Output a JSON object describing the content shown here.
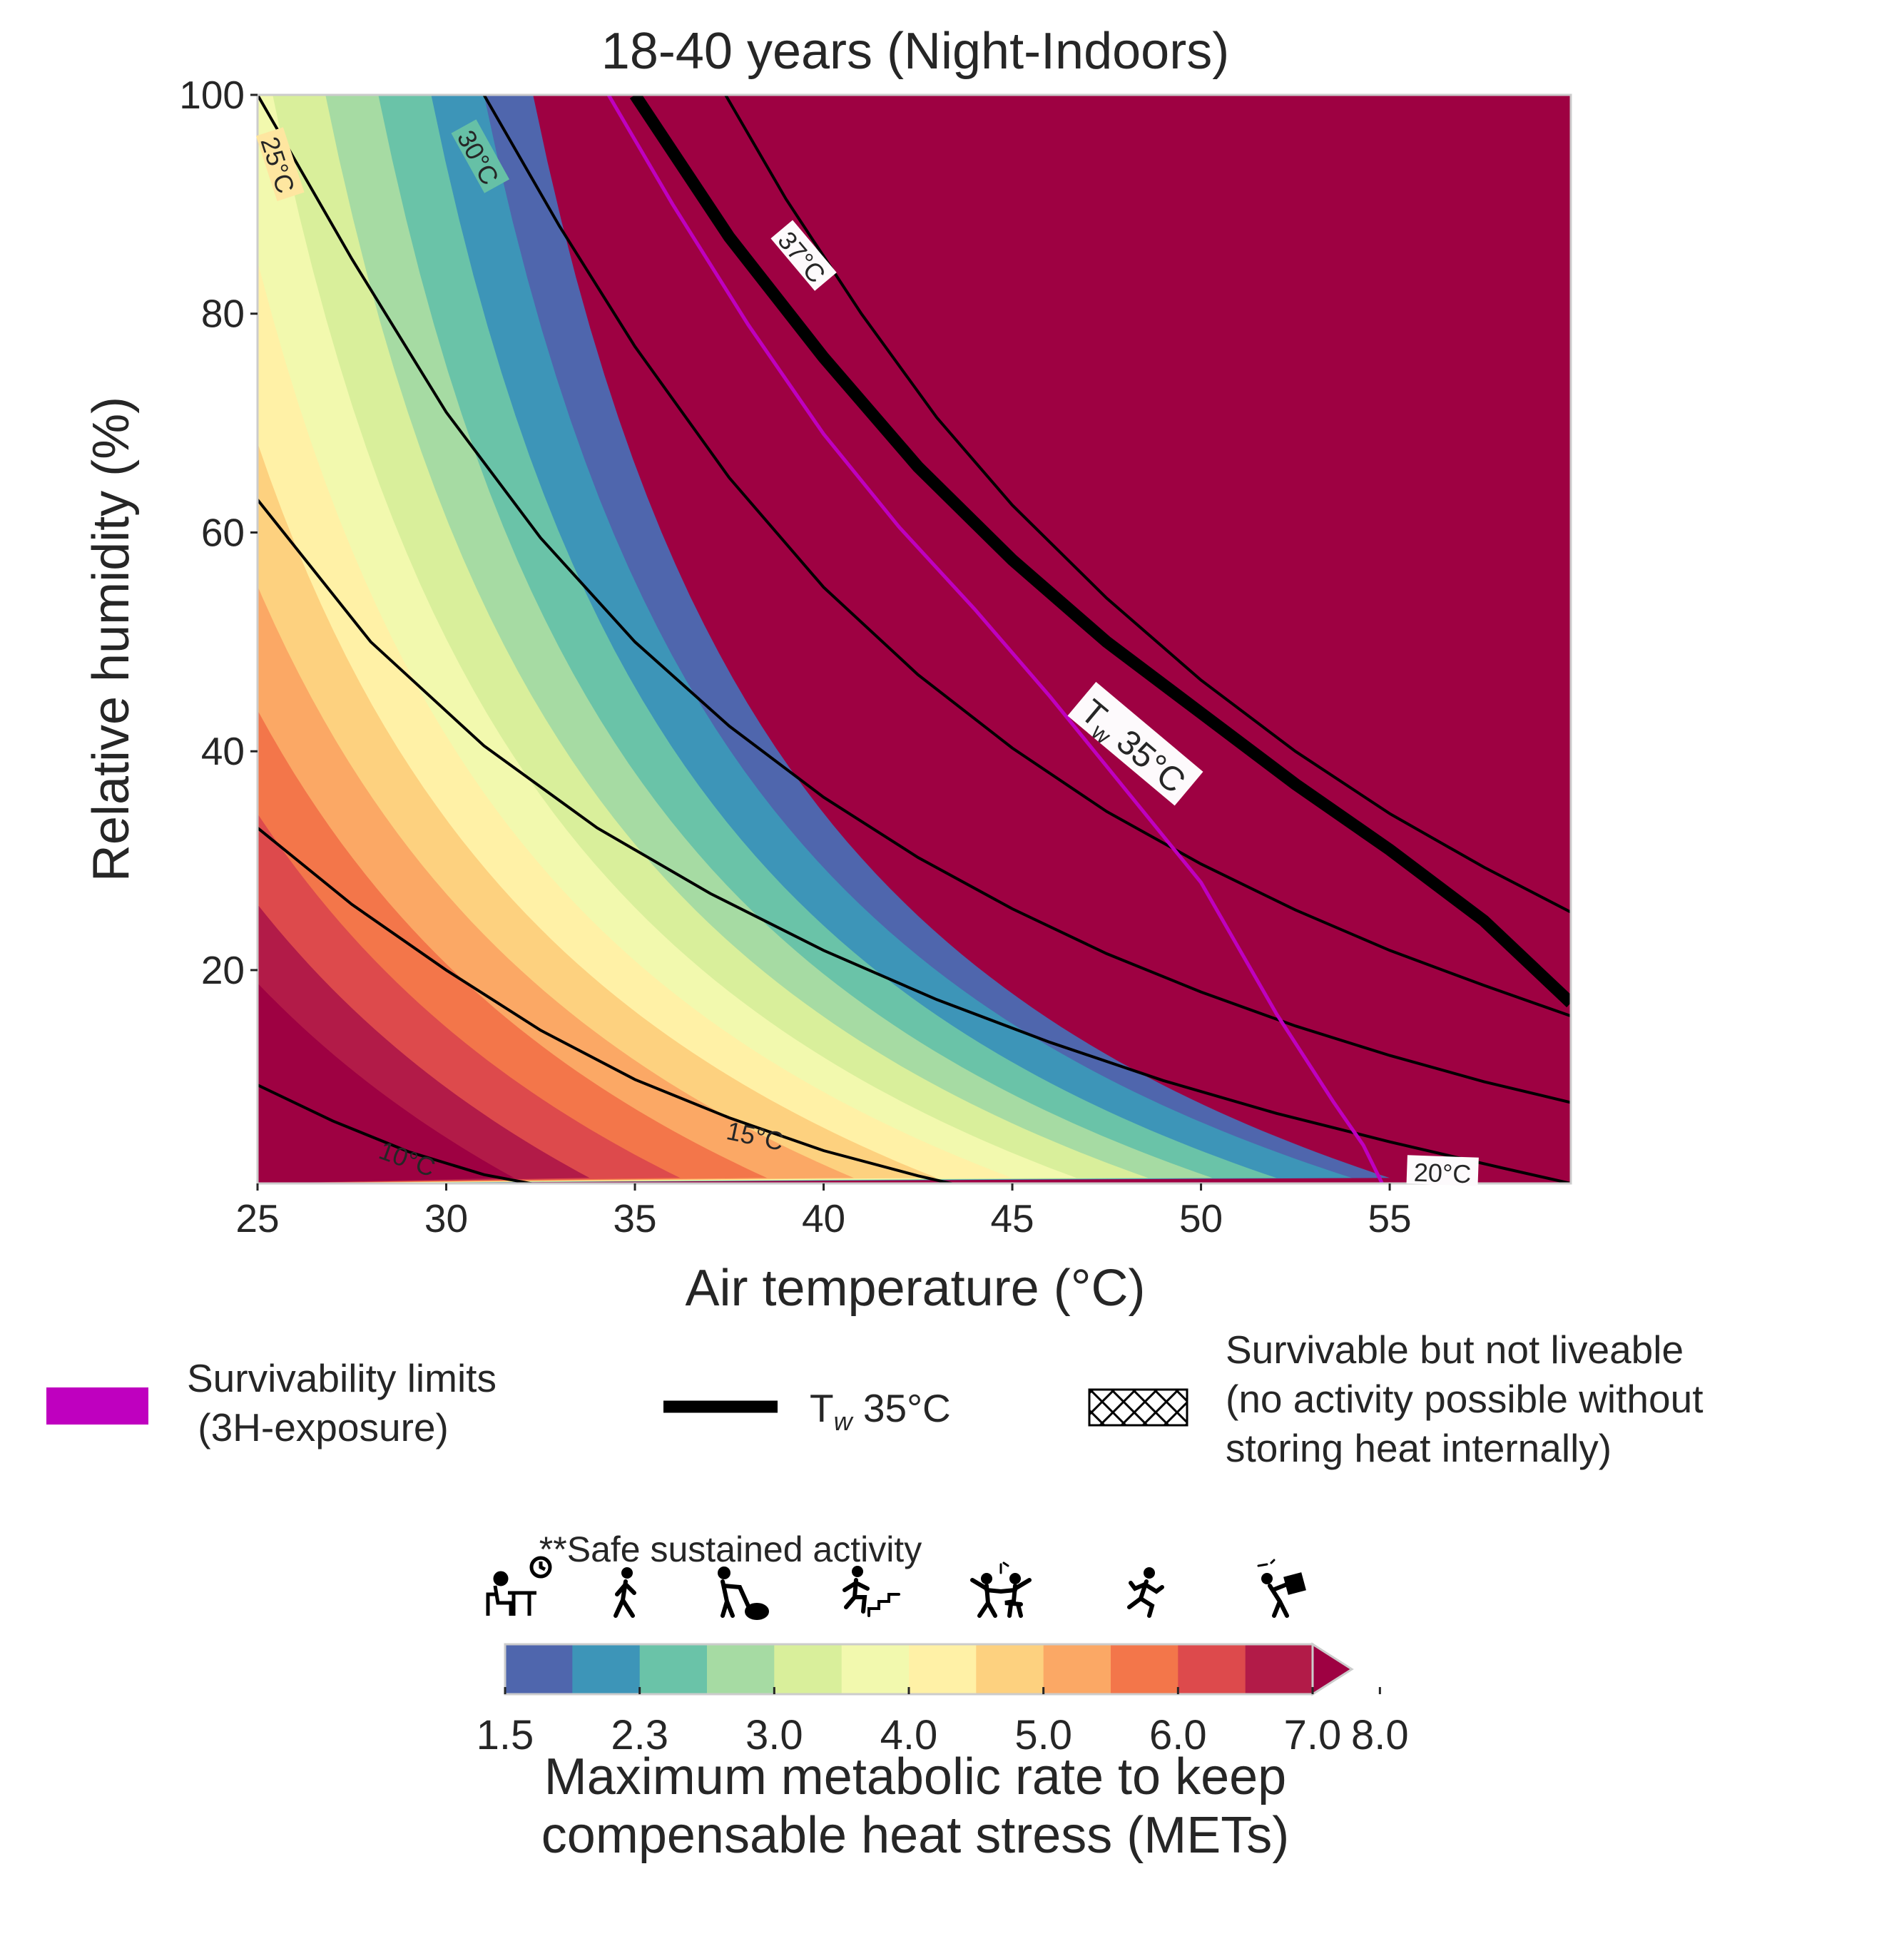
{
  "chart_data": {
    "type": "heatmap",
    "title": "18-40 years (Night-Indoors)",
    "xlabel": "Air temperature (°C)",
    "ylabel": "Relative humidity (%)",
    "xlim": [
      25,
      59.8
    ],
    "ylim": [
      0.5,
      100
    ],
    "xticks": [
      "25",
      "30",
      "35",
      "40",
      "45",
      "50",
      "55"
    ],
    "yticks": [
      "20",
      "40",
      "60",
      "80",
      "100"
    ],
    "grid": false,
    "background_color": "#fdfafc",
    "levels": [
      1.5,
      1.9,
      2.3,
      2.65,
      3.0,
      3.5,
      4.0,
      4.5,
      5.0,
      5.5,
      6.0,
      6.5,
      7.0,
      8.0
    ],
    "level_colors": [
      "#4f66ad",
      "#3d95b8",
      "#6ac3a8",
      "#a6dba3",
      "#d9ef9b",
      "#f2f9ae",
      "#fff1a6",
      "#fdd17f",
      "#fba865",
      "#f3764a",
      "#dd4a4c",
      "#b21b48",
      "#9e0142"
    ],
    "color_bands": [
      {
        "level": 1.5,
        "rh100_temp": 32.3,
        "rh1_temp": 55.0
      },
      {
        "level": 1.9,
        "rh100_temp": 31.0,
        "rh1_temp": 54.0
      },
      {
        "level": 2.3,
        "rh100_temp": 29.6,
        "rh1_temp": 52.0
      },
      {
        "level": 2.65,
        "rh100_temp": 28.2,
        "rh1_temp": 50.3
      },
      {
        "level": 3.0,
        "rh100_temp": 26.8,
        "rh1_temp": 48.6
      },
      {
        "level": 3.5,
        "rh100_temp": 25.4,
        "rh1_temp": 46.7
      },
      {
        "level": 4.0,
        "rh100_temp": 24.0,
        "rh1_temp": 45.0
      },
      {
        "level": 4.5,
        "rh100_temp": 22.6,
        "rh1_temp": 43.0
      },
      {
        "level": 5.0,
        "rh100_temp": 21.2,
        "rh1_temp": 40.8
      },
      {
        "level": 5.5,
        "rh100_temp": 19.7,
        "rh1_temp": 38.5
      },
      {
        "level": 6.0,
        "rh100_temp": 18.2,
        "rh1_temp": 36.2
      },
      {
        "level": 6.5,
        "rh100_temp": 16.7,
        "rh1_temp": 33.8
      },
      {
        "level": 7.0,
        "rh100_temp": 15.0,
        "rh1_temp": 31.8
      }
    ],
    "series": [
      {
        "name": "Survivability limits\n (3H-exposure)",
        "color": "#bf00bf",
        "x": [
          34.3,
          36,
          38,
          40,
          42,
          44,
          46,
          48,
          50,
          52,
          53.5,
          54.3,
          54.8
        ],
        "y": [
          100,
          90,
          79,
          69,
          60.5,
          53,
          45,
          36.5,
          28,
          16,
          8,
          4,
          0.5
        ]
      },
      {
        "name": "Tw 35°C",
        "color": "#000000",
        "x": [
          35,
          37.5,
          40,
          42.5,
          45,
          47.5,
          50,
          52.5,
          55,
          57.5,
          59.8
        ],
        "y": [
          100,
          87,
          76,
          66,
          57.5,
          50,
          43.5,
          37,
          31,
          24.5,
          17
        ]
      }
    ],
    "isotherms": [
      {
        "label": "10°C",
        "x": [
          25,
          27,
          29,
          31,
          33
        ],
        "y": [
          9.5,
          6.2,
          3.4,
          1.3,
          0
        ]
      },
      {
        "label": "15°C",
        "x": [
          25,
          27.5,
          30,
          32.5,
          35,
          37.5,
          40,
          42.5,
          44
        ],
        "y": [
          33,
          26,
          20,
          14.5,
          10,
          6.5,
          3.5,
          1.2,
          0
        ]
      },
      {
        "label": "20°C",
        "x": [
          25,
          28,
          31,
          34,
          37,
          40,
          43,
          46,
          49,
          52,
          55,
          58,
          59.8
        ],
        "y": [
          63,
          50,
          40.5,
          33,
          27,
          21.8,
          17.3,
          13.4,
          9.9,
          6.9,
          4.3,
          1.9,
          0.5
        ]
      },
      {
        "label": "25°C",
        "x": [
          25,
          27.5,
          30,
          32.5,
          35,
          37.5,
          40,
          42.5,
          45,
          47.5,
          50,
          52.5,
          55,
          57.5,
          59.8
        ],
        "y": [
          100,
          85,
          71,
          59.5,
          50,
          42.3,
          35.8,
          30.3,
          25.6,
          21.5,
          18,
          14.9,
          12.2,
          9.8,
          7.9
        ]
      },
      {
        "label": "30°C",
        "x": [
          31,
          33,
          35,
          37.5,
          40,
          42.5,
          45,
          47.5,
          50,
          52.5,
          55,
          57.5,
          59.8
        ],
        "y": [
          100,
          88,
          77,
          65,
          55,
          47,
          40.3,
          34.5,
          29.7,
          25.5,
          21.8,
          18.6,
          15.8
        ]
      },
      {
        "label": "37°C",
        "x": [
          37.4,
          39,
          41,
          43,
          45,
          47.5,
          50,
          52.5,
          55,
          57.5,
          59.8
        ],
        "y": [
          100,
          90.5,
          80,
          70.5,
          62.5,
          54,
          46.5,
          40,
          34.3,
          29.4,
          25.3
        ]
      }
    ],
    "contour_labels": [
      "25°C",
      "30°C",
      "37°C",
      "10°C",
      "15°C",
      "20°C"
    ],
    "tw_label": "T",
    "tw_subscript": "w",
    "tw_value": "35°C"
  },
  "legend": {
    "survivability_label": "Survivability limits\n (3H-exposure)",
    "survivability_color": "#bf00bf",
    "tw_label_main": "T",
    "tw_label_sub": "w",
    "tw_label_rest": " 35°C",
    "hatched_label": "Survivable but not liveable\n(no activity possible without\nstoring heat internally)"
  },
  "colorbar": {
    "header": "**Safe sustained activity",
    "tick_labels": [
      "1.5",
      "2.3",
      "3.0",
      "4.0",
      "5.0",
      "6.0",
      "7.0",
      "8.0"
    ],
    "tick_values": [
      1.5,
      2.3,
      3.0,
      4.0,
      5.0,
      6.0,
      7.0,
      8.0
    ],
    "label_line1": "Maximum metabolic rate to keep",
    "label_line2": "compensable heat stress (METs)",
    "extend": "max",
    "icons": [
      "desk-worker-icon",
      "walking-person-icon",
      "cleaning-person-icon",
      "stair-climbing-icon",
      "dancing-people-icon",
      "running-person-icon",
      "carrying-load-icon"
    ]
  }
}
